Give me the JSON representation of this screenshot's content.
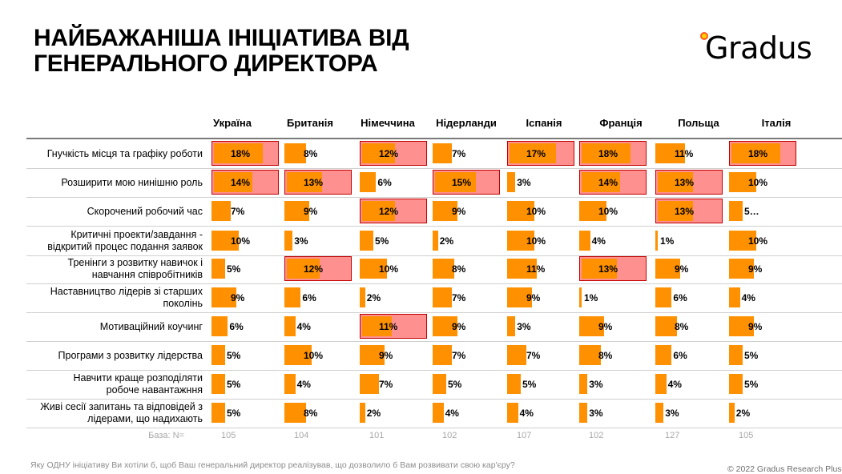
{
  "title_lines": [
    "НАЙБАЖАНІША ІНІЦІАТИВА ВІД",
    "ГЕНЕРАЛЬНОГО ДИРЕКТОРА"
  ],
  "logo": {
    "text": "Gradus",
    "dot_color": "#ff5a1f"
  },
  "colors": {
    "bar": "#ff9000",
    "highlight_fill": "#ff9090",
    "highlight_border": "#c00000"
  },
  "chart_data": {
    "type": "table",
    "title": "НАЙБАЖАНІША ІНІЦІАТИВА ВІД ГЕНЕРАЛЬНОГО ДИРЕКТОРА",
    "columns": [
      "Україна",
      "Британія",
      "Німеччина",
      "Нідерланди",
      "Іспанія",
      "Франція",
      "Польща",
      "Італія"
    ],
    "rows": [
      {
        "label": "Гнучкість місця та графіку роботи",
        "values": [
          18,
          8,
          12,
          7,
          17,
          18,
          11,
          18
        ],
        "display": [
          "18%",
          "8%",
          "12%",
          "7%",
          "17%",
          "18%",
          "11%",
          "18%"
        ],
        "highlight": [
          true,
          false,
          true,
          false,
          true,
          true,
          false,
          true
        ]
      },
      {
        "label": "Розширити мою нинішню роль",
        "values": [
          14,
          13,
          6,
          15,
          3,
          14,
          13,
          10
        ],
        "display": [
          "14%",
          "13%",
          "6%",
          "15%",
          "3%",
          "14%",
          "13%",
          "10%"
        ],
        "highlight": [
          true,
          true,
          false,
          true,
          false,
          true,
          true,
          false
        ]
      },
      {
        "label": "Скорочений робочий час",
        "values": [
          7,
          9,
          12,
          9,
          10,
          10,
          13,
          5
        ],
        "display": [
          "7%",
          "9%",
          "12%",
          "9%",
          "10%",
          "10%",
          "13%",
          "5…"
        ],
        "highlight": [
          false,
          false,
          true,
          false,
          false,
          false,
          true,
          false
        ]
      },
      {
        "label": "Критичні проекти/завдання - відкритий процес подання заявок",
        "label_lines": [
          "Критичні проекти/завдання -",
          "відкритий процес подання заявок"
        ],
        "values": [
          10,
          3,
          5,
          2,
          10,
          4,
          1,
          10
        ],
        "display": [
          "10%",
          "3%",
          "5%",
          "2%",
          "10%",
          "4%",
          "1%",
          "10%"
        ],
        "highlight": [
          false,
          false,
          false,
          false,
          false,
          false,
          false,
          false
        ]
      },
      {
        "label": "Тренінги з розвитку навичок і навчання співробітників",
        "label_lines": [
          "Тренінги з розвитку навичок і",
          "навчання співробітників"
        ],
        "values": [
          5,
          12,
          10,
          8,
          11,
          13,
          9,
          9
        ],
        "display": [
          "5%",
          "12%",
          "10%",
          "8%",
          "11%",
          "13%",
          "9%",
          "9%"
        ],
        "highlight": [
          false,
          true,
          false,
          false,
          false,
          true,
          false,
          false
        ]
      },
      {
        "label": "Наставництво лідерів зі старших поколінь",
        "label_lines": [
          "Наставництво лідерів зі старших",
          "поколінь"
        ],
        "values": [
          9,
          6,
          2,
          7,
          9,
          1,
          6,
          4
        ],
        "display": [
          "9%",
          "6%",
          "2%",
          "7%",
          "9%",
          "1%",
          "6%",
          "4%"
        ],
        "highlight": [
          false,
          false,
          false,
          false,
          false,
          false,
          false,
          false
        ]
      },
      {
        "label": "Мотиваційний коучинг",
        "values": [
          6,
          4,
          11,
          9,
          3,
          9,
          8,
          9
        ],
        "display": [
          "6%",
          "4%",
          "11%",
          "9%",
          "3%",
          "9%",
          "8%",
          "9%"
        ],
        "highlight": [
          false,
          false,
          true,
          false,
          false,
          false,
          false,
          false
        ]
      },
      {
        "label": "Програми з розвитку лідерства",
        "values": [
          5,
          10,
          9,
          7,
          7,
          8,
          6,
          5
        ],
        "display": [
          "5%",
          "10%",
          "9%",
          "7%",
          "7%",
          "8%",
          "6%",
          "5%"
        ],
        "highlight": [
          false,
          false,
          false,
          false,
          false,
          false,
          false,
          false
        ]
      },
      {
        "label": "Навчити краще розподіляти робоче навантажння",
        "label_lines": [
          "Навчити краще розподіляти",
          "робоче навантажння"
        ],
        "values": [
          5,
          4,
          7,
          5,
          5,
          3,
          4,
          5
        ],
        "display": [
          "5%",
          "4%",
          "7%",
          "5%",
          "5%",
          "3%",
          "4%",
          "5%"
        ],
        "highlight": [
          false,
          false,
          false,
          false,
          false,
          false,
          false,
          false
        ]
      },
      {
        "label": "Живі сесії запитань та відповідей з лідерами, що надихають",
        "label_lines": [
          "Живі сесії запитань та відповідей з",
          "лідерами, що надихають"
        ],
        "values": [
          5,
          8,
          2,
          4,
          4,
          3,
          3,
          2
        ],
        "display": [
          "5%",
          "8%",
          "2%",
          "4%",
          "4%",
          "3%",
          "3%",
          "2%"
        ],
        "highlight": [
          false,
          false,
          false,
          false,
          false,
          false,
          false,
          false
        ]
      }
    ],
    "base_label": "База: N=",
    "base": [
      105,
      104,
      101,
      102,
      107,
      102,
      127,
      105
    ],
    "unit": "%"
  },
  "footer": {
    "question": "Яку ОДНУ ініціативу Ви хотіли б, щоб Ваш генеральний директор реалізував, що дозволило б Вам розвивати свою кар'єру?",
    "copyright": "© 2022 Gradus Research Plus"
  }
}
